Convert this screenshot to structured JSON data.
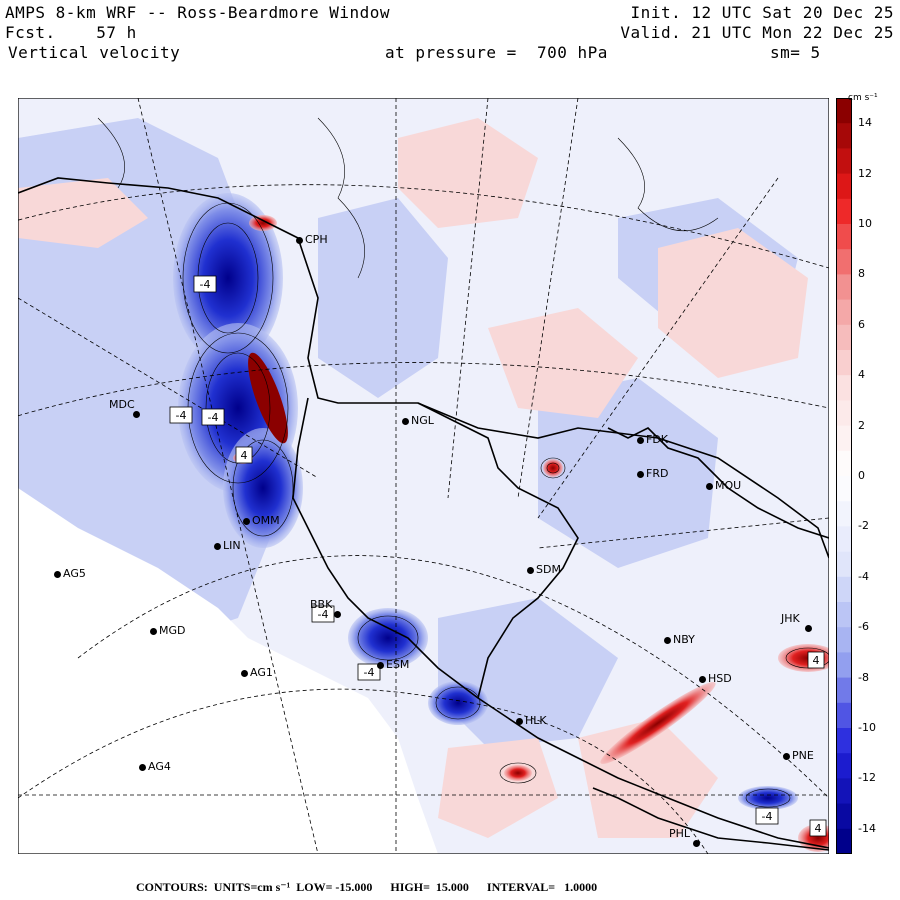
{
  "header": {
    "title": "AMPS 8-km WRF -- Ross-Beardmore Window",
    "forecast": "Fcst.    57 h",
    "field": "Vertical velocity",
    "init": "Init. 12 UTC Sat 20 Dec 25",
    "valid": "Valid. 21 UTC Mon 22 Dec 25",
    "pressure": "at pressure =  700 hPa",
    "smoothing": "sm= 5"
  },
  "colorbar": {
    "units_label": "cm s⁻¹",
    "ticks": [
      "14",
      "12",
      "10",
      "8",
      "6",
      "4",
      "2",
      "0",
      "-2",
      "-4",
      "-6",
      "-8",
      "-10",
      "-12",
      "-14"
    ],
    "range": [
      -15,
      15
    ],
    "colors": {
      "neg_max": "#00008b",
      "neg_mid": "#2222dd",
      "neg_low": "#9aa8f0",
      "neg_min": "#dfe4fa",
      "zero": "#ffffff",
      "pos_min": "#fbe0e0",
      "pos_low": "#f29a9a",
      "pos_mid": "#ee1c1c",
      "pos_max": "#8b0000"
    }
  },
  "stations": [
    {
      "name": "CPH"
    },
    {
      "name": "NGL"
    },
    {
      "name": "MDC"
    },
    {
      "name": "FDK"
    },
    {
      "name": "FRD"
    },
    {
      "name": "MOU"
    },
    {
      "name": "OMM"
    },
    {
      "name": "LIN"
    },
    {
      "name": "SDM"
    },
    {
      "name": "AG5"
    },
    {
      "name": "BBK"
    },
    {
      "name": "MGD"
    },
    {
      "name": "NBY"
    },
    {
      "name": "AG1"
    },
    {
      "name": "ESM"
    },
    {
      "name": "HSD"
    },
    {
      "name": "HLK"
    },
    {
      "name": "AG4"
    },
    {
      "name": "PNE"
    },
    {
      "name": "PHL"
    },
    {
      "name": "JHK"
    }
  ],
  "contour_labels": [
    "-4",
    "-4",
    "-4",
    "4",
    "-4",
    "-4",
    "4",
    "4",
    "-4"
  ],
  "footer": {
    "text": "CONTOURS:  UNITS=cm s⁻¹  LOW= -15.000      HIGH=  15.000      INTERVAL=   1.0000"
  }
}
